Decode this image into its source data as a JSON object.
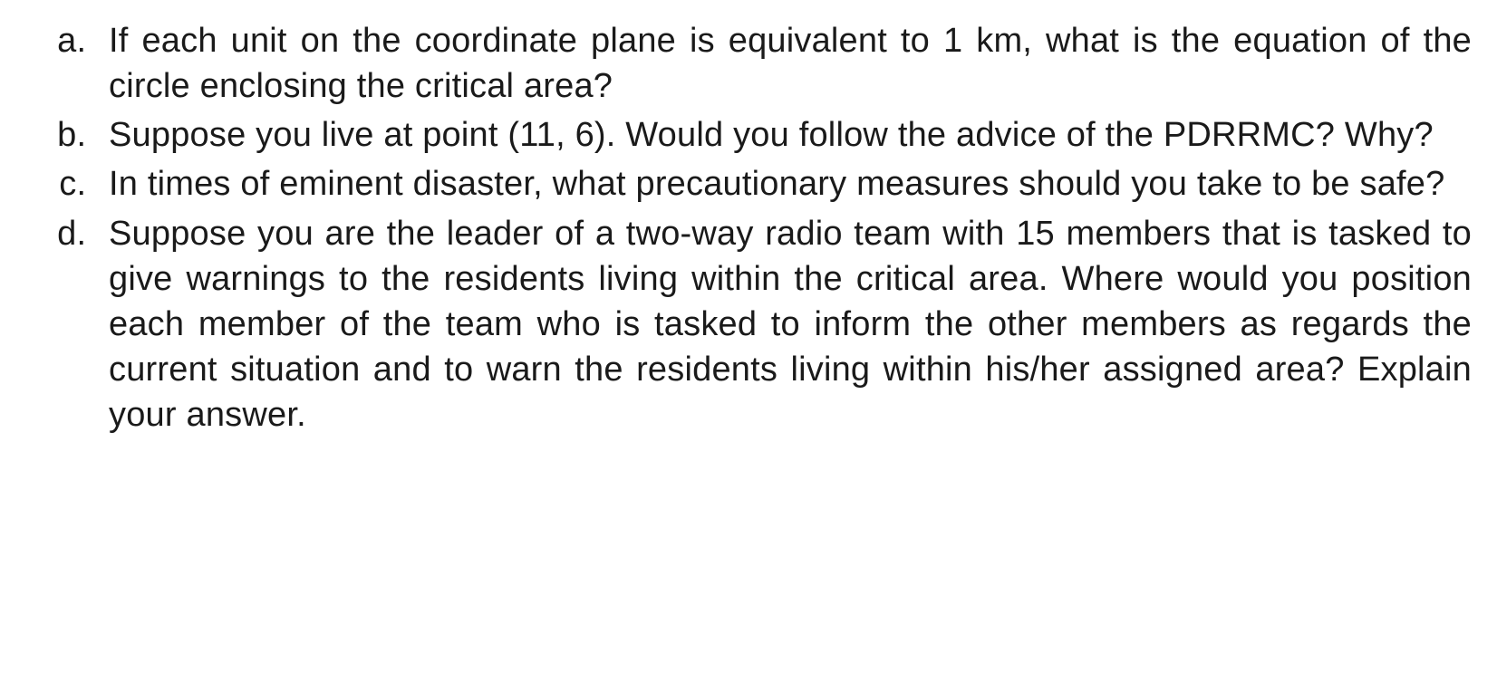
{
  "document": {
    "background_color": "#ffffff",
    "text_color": "#1a1a1a",
    "font_family": "Arial",
    "font_size_pt": 28,
    "list_style": "lower-alpha",
    "text_align": "justify",
    "questions": [
      {
        "letter": "a",
        "text": "If each unit on the coordinate plane is equivalent to 1 km, what is the equation of the circle enclosing the critical area?"
      },
      {
        "letter": "b",
        "text": "Suppose you live at point (11, 6). Would you follow the advice of the PDRRMC? Why?"
      },
      {
        "letter": "c",
        "text": "In times of eminent disaster, what precautionary measures should you take to be safe?"
      },
      {
        "letter": "d",
        "text": "Suppose you are the leader of a two-way radio team with 15 members that is tasked to give warnings to the residents living within the critical area. Where would you position each member of the team who is tasked to inform the other members as regards the current situation and to warn the residents living within his/her assigned area? Explain your answer."
      }
    ]
  }
}
